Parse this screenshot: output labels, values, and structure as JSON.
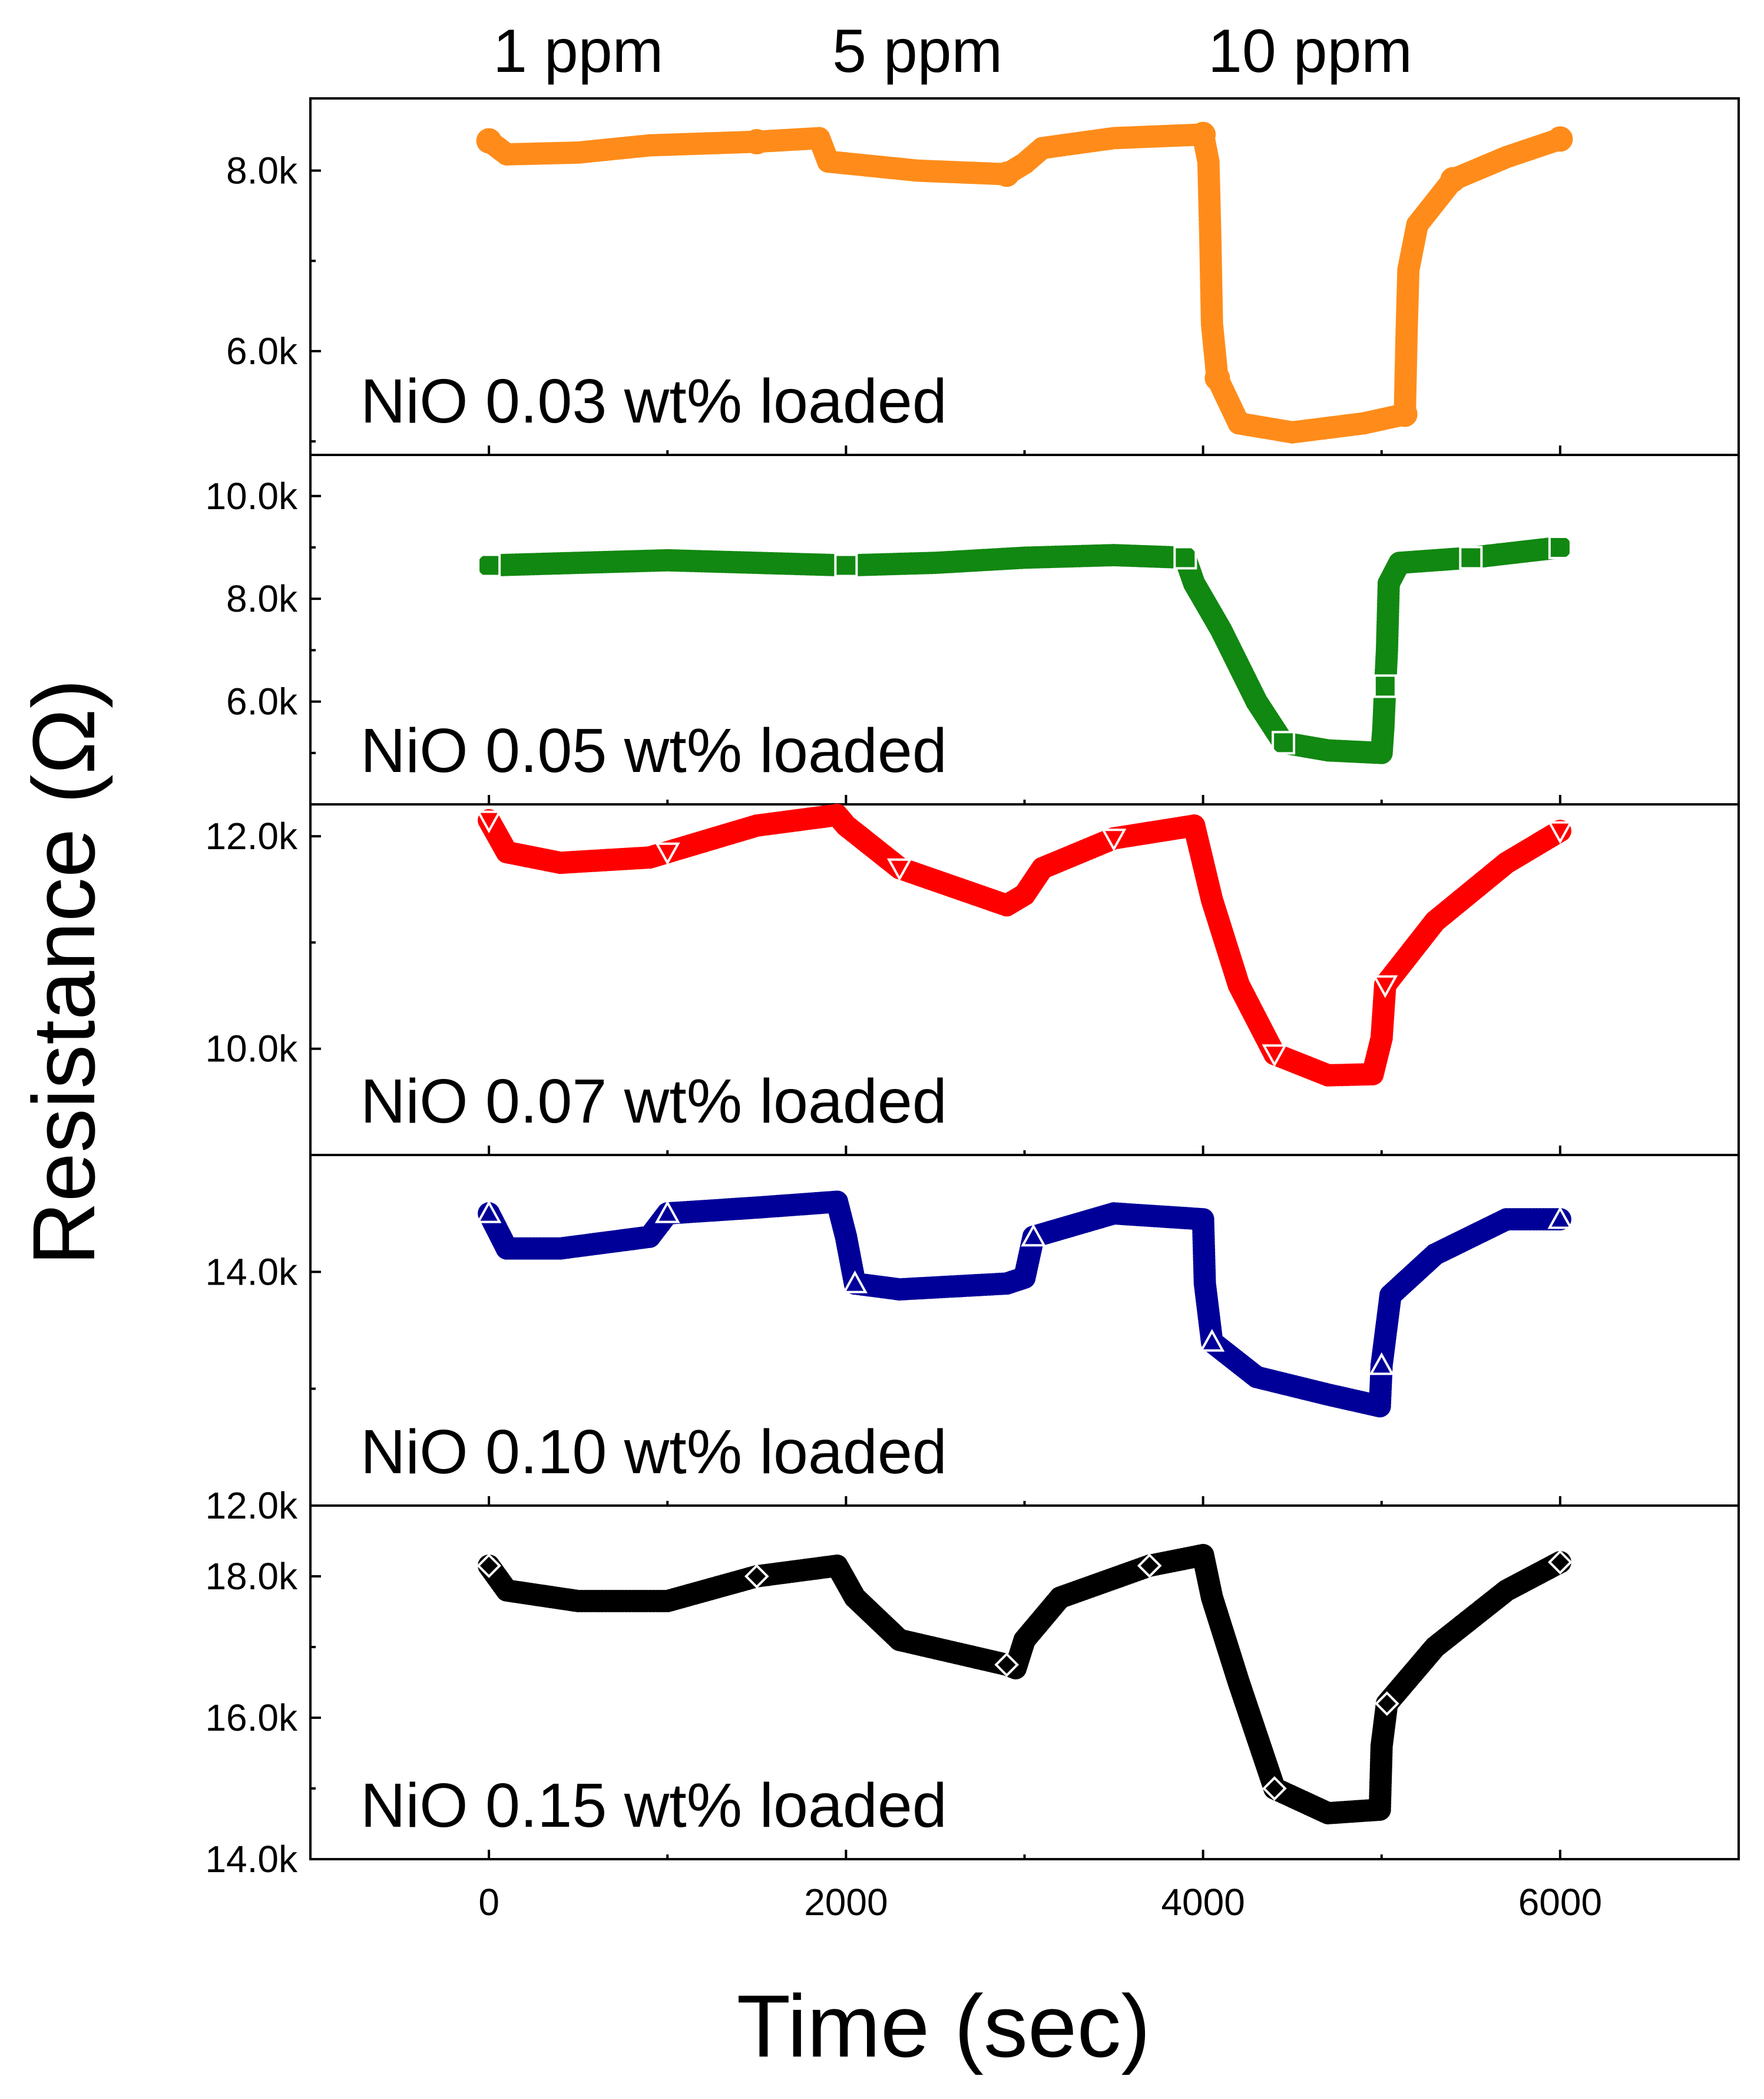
{
  "chart_data": {
    "type": "scatter",
    "xlabel": "Time (sec)",
    "ylabel": "Resistance (Ω)",
    "xlim": [
      -1000,
      7000
    ],
    "xticks": [
      0,
      2000,
      4000,
      6000
    ],
    "xtick_labels": [
      "0",
      "2000",
      "4000",
      "6000"
    ],
    "concentration_labels": [
      {
        "x": 500,
        "label": "1 ppm"
      },
      {
        "x": 2400,
        "label": "5 ppm"
      },
      {
        "x": 4600,
        "label": "10 ppm"
      }
    ],
    "panels": [
      {
        "label": "NiO 0.03 wt% loaded",
        "color": "#ff8c1a",
        "marker": "circle",
        "ylim": [
          4850,
          8800
        ],
        "yticks": [
          6000,
          8000
        ],
        "ytick_labels": [
          "6.0k",
          "8.0k"
        ],
        "points": [
          [
            0,
            8330
          ],
          [
            100,
            8180
          ],
          [
            500,
            8200
          ],
          [
            900,
            8280
          ],
          [
            1500,
            8320
          ],
          [
            1850,
            8360
          ],
          [
            1900,
            8100
          ],
          [
            2400,
            8000
          ],
          [
            2900,
            7960
          ],
          [
            3000,
            8080
          ],
          [
            3100,
            8250
          ],
          [
            3500,
            8360
          ],
          [
            4000,
            8400
          ],
          [
            4030,
            8100
          ],
          [
            4040,
            7300
          ],
          [
            4050,
            6300
          ],
          [
            4080,
            5700
          ],
          [
            4200,
            5200
          ],
          [
            4500,
            5100
          ],
          [
            4900,
            5200
          ],
          [
            5130,
            5300
          ],
          [
            5140,
            6200
          ],
          [
            5150,
            6900
          ],
          [
            5200,
            7400
          ],
          [
            5400,
            7900
          ],
          [
            5700,
            8150
          ],
          [
            6000,
            8350
          ]
        ]
      },
      {
        "label": "NiO 0.05 wt% loaded",
        "color": "#118811",
        "marker": "square",
        "ylim": [
          4000,
          10800
        ],
        "yticks": [
          6000,
          8000,
          10000
        ],
        "ytick_labels": [
          "6.0k",
          "8.0k",
          "10.0k"
        ],
        "points": [
          [
            0,
            8650
          ],
          [
            500,
            8700
          ],
          [
            1000,
            8750
          ],
          [
            1500,
            8700
          ],
          [
            2000,
            8650
          ],
          [
            2500,
            8700
          ],
          [
            3000,
            8800
          ],
          [
            3500,
            8850
          ],
          [
            3900,
            8800
          ],
          [
            3950,
            8300
          ],
          [
            4100,
            7400
          ],
          [
            4300,
            6000
          ],
          [
            4450,
            5200
          ],
          [
            4700,
            5050
          ],
          [
            5000,
            5000
          ],
          [
            5010,
            5500
          ],
          [
            5020,
            6300
          ],
          [
            5030,
            7000
          ],
          [
            5040,
            8300
          ],
          [
            5100,
            8700
          ],
          [
            5500,
            8800
          ],
          [
            6000,
            9000
          ]
        ]
      },
      {
        "label": "NiO 0.07 wt% loaded",
        "color": "#ff0000",
        "marker": "triangle-down",
        "ylim": [
          9000,
          12300
        ],
        "yticks": [
          10000,
          12000
        ],
        "ytick_labels": [
          "10.0k",
          "12.0k"
        ],
        "points": [
          [
            0,
            12150
          ],
          [
            100,
            11850
          ],
          [
            400,
            11750
          ],
          [
            900,
            11800
          ],
          [
            1000,
            11850
          ],
          [
            1500,
            12100
          ],
          [
            1950,
            12200
          ],
          [
            2000,
            12100
          ],
          [
            2300,
            11700
          ],
          [
            2900,
            11350
          ],
          [
            3000,
            11450
          ],
          [
            3100,
            11700
          ],
          [
            3500,
            11980
          ],
          [
            3950,
            12100
          ],
          [
            4050,
            11400
          ],
          [
            4200,
            10600
          ],
          [
            4400,
            9950
          ],
          [
            4700,
            9750
          ],
          [
            4950,
            9760
          ],
          [
            5000,
            10100
          ],
          [
            5020,
            10600
          ],
          [
            5300,
            11200
          ],
          [
            5700,
            11750
          ],
          [
            6000,
            12050
          ]
        ]
      },
      {
        "label": "NiO 0.10 wt% loaded",
        "color": "#000099",
        "marker": "triangle-up",
        "ylim": [
          12000,
          15000
        ],
        "yticks": [
          12000,
          14000
        ],
        "ytick_labels": [
          "12.0k",
          "14.0k"
        ],
        "points": [
          [
            0,
            14500
          ],
          [
            100,
            14200
          ],
          [
            400,
            14200
          ],
          [
            900,
            14300
          ],
          [
            1000,
            14500
          ],
          [
            1500,
            14550
          ],
          [
            1950,
            14600
          ],
          [
            2000,
            14300
          ],
          [
            2050,
            13900
          ],
          [
            2300,
            13850
          ],
          [
            2900,
            13900
          ],
          [
            3000,
            13950
          ],
          [
            3050,
            14300
          ],
          [
            3500,
            14500
          ],
          [
            4000,
            14450
          ],
          [
            4010,
            13900
          ],
          [
            4050,
            13400
          ],
          [
            4300,
            13100
          ],
          [
            4700,
            12950
          ],
          [
            4990,
            12850
          ],
          [
            5000,
            13200
          ],
          [
            5050,
            13800
          ],
          [
            5300,
            14150
          ],
          [
            5700,
            14450
          ],
          [
            6000,
            14450
          ]
        ]
      },
      {
        "label": "NiO 0.15 wt% loaded",
        "color": "#000000",
        "marker": "diamond",
        "ylim": [
          14000,
          19000
        ],
        "yticks": [
          14000,
          16000,
          18000
        ],
        "ytick_labels": [
          "14.0k",
          "16.0k",
          "18.0k"
        ],
        "points": [
          [
            0,
            18150
          ],
          [
            100,
            17800
          ],
          [
            500,
            17650
          ],
          [
            1000,
            17650
          ],
          [
            1500,
            18000
          ],
          [
            1950,
            18150
          ],
          [
            2050,
            17700
          ],
          [
            2300,
            17100
          ],
          [
            2900,
            16750
          ],
          [
            2950,
            16700
          ],
          [
            3000,
            17100
          ],
          [
            3200,
            17700
          ],
          [
            3700,
            18150
          ],
          [
            4000,
            18300
          ],
          [
            4050,
            17700
          ],
          [
            4200,
            16500
          ],
          [
            4400,
            15000
          ],
          [
            4700,
            14650
          ],
          [
            4990,
            14700
          ],
          [
            5000,
            15600
          ],
          [
            5030,
            16200
          ],
          [
            5300,
            17000
          ],
          [
            5700,
            17800
          ],
          [
            6000,
            18200
          ]
        ]
      }
    ]
  }
}
